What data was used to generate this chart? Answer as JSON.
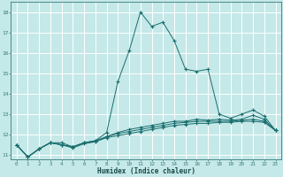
{
  "title": "",
  "xlabel": "Humidex (Indice chaleur)",
  "ylabel": "",
  "background_color": "#c5e8e8",
  "grid_color": "#ffffff",
  "line_color": "#1a6e6e",
  "xlim": [
    -0.5,
    23.5
  ],
  "ylim": [
    10.8,
    18.5
  ],
  "xtick_labels": [
    "0",
    "1",
    "2",
    "3",
    "4",
    "5",
    "6",
    "7",
    "8",
    "9",
    "10",
    "11",
    "12",
    "13",
    "14",
    "15",
    "16",
    "17",
    "18",
    "19",
    "20",
    "21",
    "22",
    "23"
  ],
  "ytick_values": [
    11,
    12,
    13,
    14,
    15,
    16,
    17,
    18
  ],
  "series": [
    {
      "x": [
        0,
        1,
        2,
        3,
        4,
        5,
        6,
        7,
        8,
        9,
        10,
        11,
        12,
        13,
        14,
        15,
        16,
        17,
        18,
        19,
        20,
        21,
        22,
        23
      ],
      "y": [
        11.5,
        10.9,
        11.3,
        11.6,
        11.6,
        11.4,
        11.6,
        11.7,
        12.1,
        14.6,
        16.1,
        18.0,
        17.3,
        17.5,
        16.6,
        15.2,
        15.1,
        15.2,
        13.0,
        12.8,
        13.0,
        13.2,
        12.9,
        12.2
      ]
    },
    {
      "x": [
        0,
        1,
        2,
        3,
        4,
        5,
        6,
        7,
        8,
        9,
        10,
        11,
        12,
        13,
        14,
        15,
        16,
        17,
        18,
        19,
        20,
        21,
        22,
        23
      ],
      "y": [
        11.5,
        10.9,
        11.3,
        11.6,
        11.5,
        11.35,
        11.55,
        11.65,
        11.85,
        11.95,
        12.05,
        12.15,
        12.25,
        12.35,
        12.45,
        12.5,
        12.55,
        12.55,
        12.6,
        12.6,
        12.65,
        12.65,
        12.6,
        12.2
      ]
    },
    {
      "x": [
        0,
        1,
        2,
        3,
        4,
        5,
        6,
        7,
        8,
        9,
        10,
        11,
        12,
        13,
        14,
        15,
        16,
        17,
        18,
        19,
        20,
        21,
        22,
        23
      ],
      "y": [
        11.5,
        10.9,
        11.3,
        11.6,
        11.5,
        11.4,
        11.6,
        11.65,
        11.9,
        12.05,
        12.15,
        12.25,
        12.35,
        12.45,
        12.55,
        12.6,
        12.65,
        12.65,
        12.65,
        12.65,
        12.7,
        12.75,
        12.65,
        12.2
      ]
    },
    {
      "x": [
        0,
        1,
        2,
        3,
        4,
        5,
        6,
        7,
        8,
        9,
        10,
        11,
        12,
        13,
        14,
        15,
        16,
        17,
        18,
        19,
        20,
        21,
        22,
        23
      ],
      "y": [
        11.5,
        10.9,
        11.3,
        11.6,
        11.5,
        11.4,
        11.6,
        11.7,
        11.9,
        12.1,
        12.25,
        12.35,
        12.45,
        12.55,
        12.65,
        12.65,
        12.75,
        12.7,
        12.75,
        12.7,
        12.75,
        12.95,
        12.75,
        12.2
      ]
    }
  ]
}
